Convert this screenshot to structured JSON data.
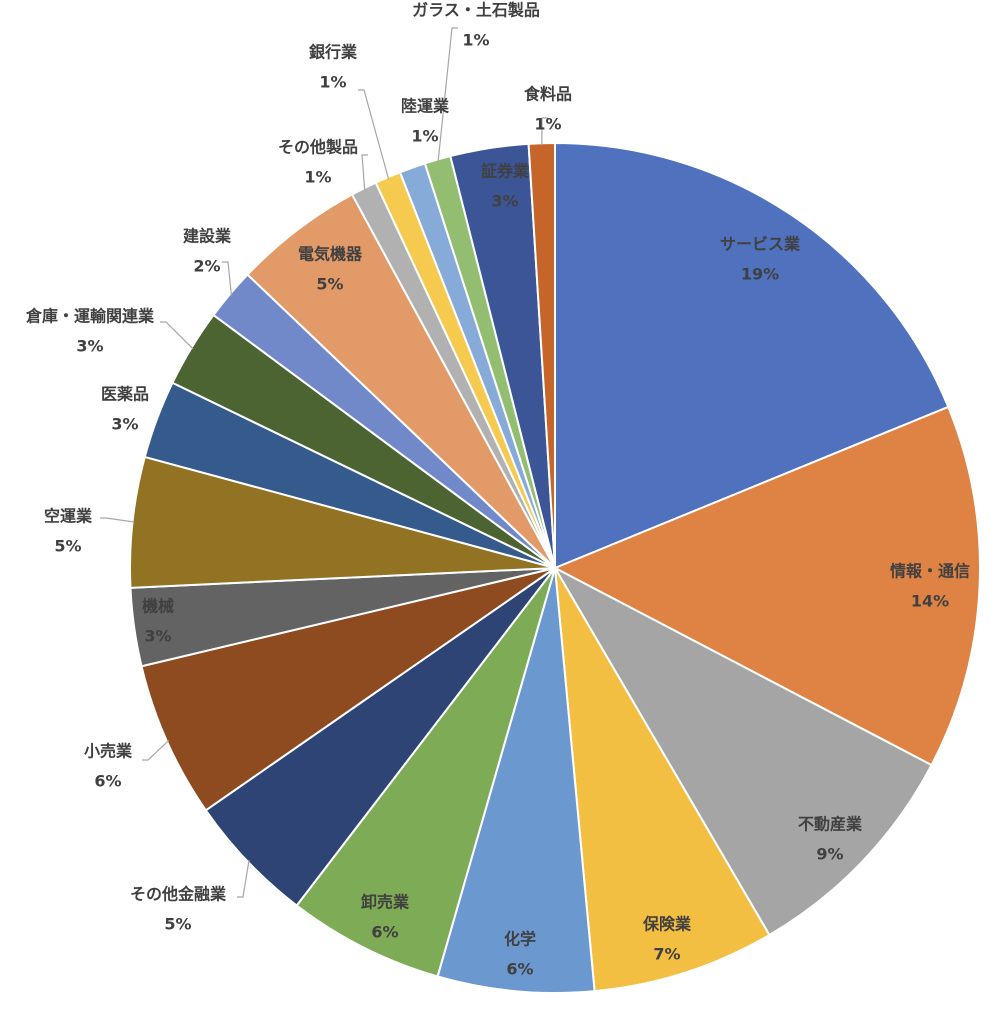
{
  "chart_data": {
    "type": "pie",
    "categories": [
      "サービス業",
      "情報・通信",
      "不動産業",
      "保険業",
      "化学",
      "卸売業",
      "その他金融業",
      "小売業",
      "機械",
      "空運業",
      "医薬品",
      "倉庫・運輸関連業",
      "建設業",
      "電気機器",
      "その他製品",
      "銀行業",
      "陸運業",
      "ガラス・土石製品",
      "証券業",
      "食料品"
    ],
    "values": [
      19,
      14,
      9,
      7,
      6,
      6,
      5,
      6,
      3,
      5,
      3,
      3,
      2,
      5,
      1,
      1,
      1,
      1,
      3,
      1
    ],
    "value_labels": [
      "19%",
      "14%",
      "9%",
      "7%",
      "6%",
      "6%",
      "5%",
      "6%",
      "3%",
      "5%",
      "3%",
      "3%",
      "2%",
      "5%",
      "1%",
      "1%",
      "1%",
      "1%",
      "3%",
      "1%"
    ],
    "colors": [
      "#4f71be",
      "#de8344",
      "#a5a5a5",
      "#f3bf42",
      "#6a98cf",
      "#7eab55",
      "#2e4474",
      "#8f4b20",
      "#636363",
      "#917323",
      "#345b8c",
      "#4b6431",
      "#7189c9",
      "#e29a69",
      "#b1b1b1",
      "#f6c94f",
      "#86abd9",
      "#93be71",
      "#3b5597",
      "#c5652a"
    ]
  }
}
